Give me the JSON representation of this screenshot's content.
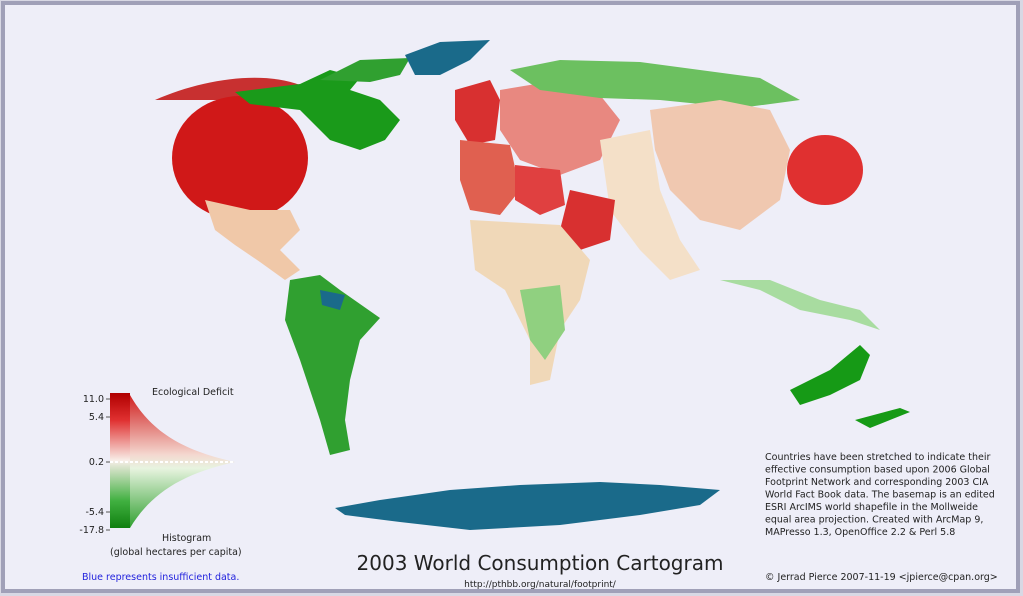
{
  "title": "2003 World Consumption Cartogram",
  "url": "http://pthbb.org/natural/footprint/",
  "legend": {
    "title": "Ecological Deficit",
    "ticks": [
      {
        "value": 11,
        "label": "11.0"
      },
      5.4,
      0.2,
      -5.4,
      -17.8
    ],
    "histogram_label": "Histogram",
    "units": "(global hectares per capita)"
  },
  "note": "Blue represents insufficient data.",
  "description": [
    "Countries have been  stretched to indicate their",
    "effective consumption based upon 2006 Global",
    "Footprint Network and corresponding 2003 CIA",
    "World Fact Book data. The basemap is an edited",
    "ESRI ArcIMS world shapefile in the Mollweide",
    "equal area projection.  Created with  ArcMap 9,",
    "MAPresso 1.3, OpenOffice 2.2 & Perl 5.8"
  ],
  "credit": "© Jerrad Pierce 2007-11-19 <jpierce@cpan.org>"
}
